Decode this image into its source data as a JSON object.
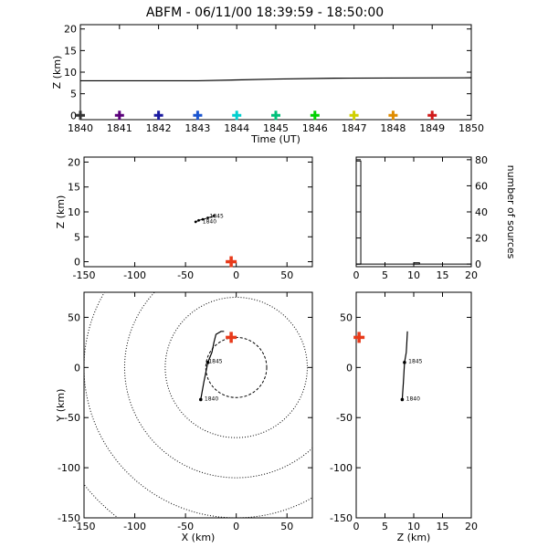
{
  "header": {
    "title": "ABFM - 06/11/00 18:39:59 - 18:50:00"
  },
  "colors": {
    "axis": "#000000",
    "station": "#e83a1a",
    "marker_sequence": [
      "#333333",
      "#5a007a",
      "#1a1aa0",
      "#1a55d0",
      "#00d0d0",
      "#00c07a",
      "#00d000",
      "#d0d000",
      "#e08c00",
      "#d01a1a"
    ]
  },
  "chart_data": [
    {
      "id": "time_height",
      "type": "line",
      "xlabel": "Time (UT)",
      "ylabel": "Z (km)",
      "xlim": [
        1840,
        1850
      ],
      "ylim": [
        -1,
        21
      ],
      "xticks": [
        "1840",
        "1841",
        "1842",
        "1843",
        "1844",
        "1845",
        "1846",
        "1847",
        "1848",
        "1849",
        "1850"
      ],
      "yticks": [
        "0",
        "5",
        "10",
        "15",
        "20"
      ],
      "series": [
        {
          "x": [
            1840,
            1843,
            1845,
            1846.5,
            1850
          ],
          "y": [
            8.0,
            8.0,
            8.4,
            8.6,
            8.7
          ]
        }
      ],
      "markers": {
        "x": [
          1840,
          1841,
          1842,
          1843,
          1844,
          1845,
          1846,
          1847,
          1848,
          1849
        ],
        "y": [
          0,
          0,
          0,
          0,
          0,
          0,
          0,
          0,
          0,
          0
        ]
      }
    },
    {
      "id": "xz_projection",
      "type": "scatter",
      "xlabel": "",
      "ylabel": "Z (km)",
      "xlim": [
        -150,
        75
      ],
      "ylim": [
        -1,
        21
      ],
      "xticks": [
        "-150",
        "-100",
        "-50",
        "0",
        "50"
      ],
      "yticks": [
        "0",
        "5",
        "10",
        "15",
        "20"
      ],
      "series": [
        {
          "x": [
            -40,
            -37,
            -33,
            -28,
            -22
          ],
          "y": [
            8.0,
            8.3,
            8.5,
            8.8,
            9.2
          ]
        }
      ],
      "labels": [
        {
          "text": "1845",
          "x": -28,
          "y": 9.2
        },
        {
          "text": "1840",
          "x": -35,
          "y": 8.1
        }
      ],
      "station": {
        "x": -5,
        "y": 0
      }
    },
    {
      "id": "source_histogram",
      "type": "bar",
      "xlabel": "",
      "ylabel": "number of sources",
      "xlim": [
        0,
        20
      ],
      "ylim": [
        -2,
        82
      ],
      "xticks": [
        "0",
        "5",
        "10",
        "15",
        "20"
      ],
      "yticks": [
        "0",
        "20",
        "40",
        "60",
        "80"
      ],
      "bins": [
        {
          "x0": 0,
          "x1": 0.8,
          "count": 79
        },
        {
          "x0": 10,
          "x1": 11,
          "count": 1
        }
      ]
    },
    {
      "id": "xy_plan",
      "type": "scatter",
      "xlabel": "X (km)",
      "ylabel": "Y (km)",
      "xlim": [
        -150,
        75
      ],
      "ylim": [
        -150,
        75
      ],
      "xticks": [
        "-150",
        "-100",
        "-50",
        "0",
        "50"
      ],
      "yticks": [
        "-150",
        "-100",
        "-50",
        "0",
        "50"
      ],
      "range_rings_km": [
        30,
        70,
        110,
        150,
        190
      ],
      "ring_center": {
        "x": 0,
        "y": 0
      },
      "series": [
        {
          "x": [
            -35,
            -32,
            -28,
            -24,
            -22,
            -20,
            -15,
            -12
          ],
          "y": [
            -32,
            -15,
            5,
            15,
            25,
            33,
            36,
            36
          ]
        }
      ],
      "labels": [
        {
          "text": "1845",
          "x": -30,
          "y": 6
        },
        {
          "text": "1840",
          "x": -34,
          "y": -31
        }
      ],
      "station": {
        "x": -5,
        "y": 30
      }
    },
    {
      "id": "zy_projection",
      "type": "scatter",
      "xlabel": "Z (km)",
      "ylabel": "",
      "xlim": [
        0,
        20
      ],
      "ylim": [
        -150,
        75
      ],
      "xticks": [
        "0",
        "5",
        "10",
        "15",
        "20"
      ],
      "yticks": [
        "-150",
        "-100",
        "-50",
        "0",
        "50"
      ],
      "series": [
        {
          "x": [
            8.0,
            8.2,
            8.4,
            8.7,
            8.8,
            8.9
          ],
          "y": [
            -32,
            -15,
            5,
            15,
            25,
            36
          ]
        }
      ],
      "labels": [
        {
          "text": "1845",
          "x": 8.6,
          "y": 6
        },
        {
          "text": "1840",
          "x": 8.2,
          "y": -31
        }
      ],
      "station": {
        "x": 0.5,
        "y": 30
      }
    }
  ]
}
